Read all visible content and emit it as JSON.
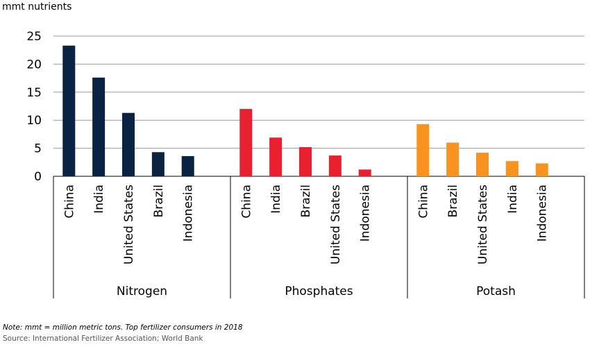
{
  "chart_data": {
    "type": "bar",
    "ylabel": "mmt nutrients",
    "ylim": [
      0,
      25
    ],
    "yticks": [
      0,
      5,
      10,
      15,
      20,
      25
    ],
    "grid": true,
    "groups": [
      {
        "name": "Nitrogen",
        "color": "#0a2342",
        "categories": [
          "China",
          "India",
          "United States",
          "Brazil",
          "Indonesia"
        ],
        "values": [
          23.3,
          17.6,
          11.3,
          4.3,
          3.6
        ]
      },
      {
        "name": "Phosphates",
        "color": "#e8202f",
        "categories": [
          "China",
          "India",
          "Brazil",
          "United States",
          "Indonesia"
        ],
        "values": [
          12.0,
          6.9,
          5.2,
          3.7,
          1.2
        ]
      },
      {
        "name": "Potash",
        "color": "#f7931e",
        "categories": [
          "China",
          "Brazil",
          "United States",
          "India",
          "Indonesia"
        ],
        "values": [
          9.3,
          6.0,
          4.2,
          2.7,
          2.3
        ]
      }
    ]
  },
  "note": "Note: mmt = million metric tons. Top fertilizer consumers in 2018",
  "source": "Source: International Fertilizer Association; World Bank"
}
